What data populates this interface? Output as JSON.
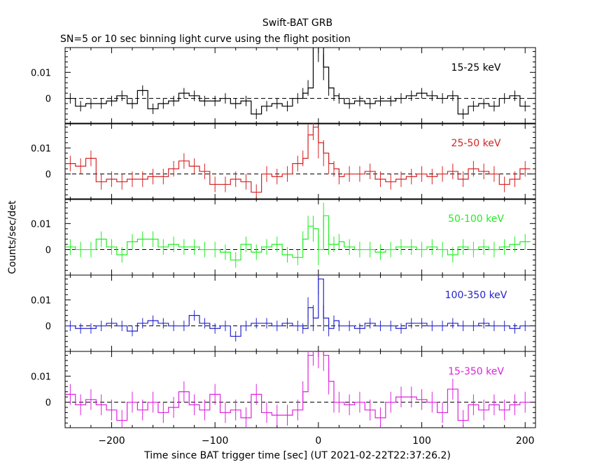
{
  "title": "Swift-BAT GRB",
  "subtitle": "SN=5 or 10 sec binning light curve using the flight position",
  "ylabel": "Counts/sec/det",
  "xlabel": "Time since BAT trigger time [sec] (UT 2021-02-22T22:37:26.2)",
  "chart_data": {
    "type": "line",
    "x_ticks": [
      -200,
      -100,
      0,
      100,
      200
    ],
    "xlim": [
      -245,
      210
    ],
    "ylim": [
      -0.0098,
      0.0195
    ],
    "y_ticks": [
      0,
      0.01
    ],
    "y_tick_labels": [
      "0",
      "0.01"
    ],
    "baseline": 0,
    "panels": [
      {
        "name": "15-25 keV",
        "color": "#000000",
        "x": [
          -240,
          -230,
          -220,
          -210,
          -200,
          -190,
          -180,
          -170,
          -160,
          -150,
          -140,
          -130,
          -120,
          -110,
          -100,
          -90,
          -80,
          -70,
          -60,
          -50,
          -40,
          -30,
          -20,
          -15,
          -10,
          -5,
          0,
          5,
          10,
          15,
          20,
          30,
          40,
          50,
          60,
          70,
          80,
          90,
          100,
          110,
          120,
          130,
          140,
          150,
          160,
          170,
          180,
          190,
          200
        ],
        "y": [
          0,
          -0.003,
          -0.002,
          -0.002,
          -0.001,
          0.001,
          -0.002,
          0.003,
          -0.004,
          -0.002,
          -0.001,
          0.002,
          0.001,
          -0.001,
          -0.001,
          0.0,
          -0.002,
          -0.001,
          -0.006,
          -0.003,
          -0.002,
          -0.003,
          0.0,
          0.002,
          0.004,
          0.02,
          0.02,
          0.012,
          0.004,
          0.001,
          0.0,
          -0.002,
          -0.001,
          -0.002,
          -0.001,
          -0.001,
          0.0,
          0.001,
          0.002,
          0.001,
          0.0,
          0.001,
          -0.006,
          -0.003,
          -0.002,
          -0.003,
          0.0,
          0.001,
          -0.003
        ],
        "err": [
          0.002,
          0.002,
          0.002,
          0.002,
          0.002,
          0.002,
          0.002,
          0.002,
          0.002,
          0.002,
          0.002,
          0.002,
          0.002,
          0.002,
          0.002,
          0.002,
          0.002,
          0.002,
          0.002,
          0.002,
          0.002,
          0.002,
          0.002,
          0.002,
          0.003,
          0.005,
          0.006,
          0.005,
          0.003,
          0.002,
          0.002,
          0.002,
          0.002,
          0.002,
          0.002,
          0.002,
          0.002,
          0.002,
          0.002,
          0.002,
          0.002,
          0.002,
          0.002,
          0.002,
          0.002,
          0.002,
          0.002,
          0.002,
          0.002
        ]
      },
      {
        "name": "25-50 keV",
        "color": "#d42222",
        "x": [
          -240,
          -230,
          -220,
          -210,
          -200,
          -190,
          -180,
          -170,
          -160,
          -150,
          -140,
          -130,
          -120,
          -110,
          -100,
          -90,
          -80,
          -70,
          -60,
          -50,
          -40,
          -30,
          -20,
          -15,
          -10,
          -5,
          0,
          5,
          10,
          15,
          20,
          30,
          40,
          50,
          60,
          70,
          80,
          90,
          100,
          110,
          120,
          130,
          140,
          150,
          160,
          170,
          180,
          190,
          200
        ],
        "y": [
          0.004,
          0.003,
          0.006,
          -0.003,
          -0.002,
          -0.003,
          -0.002,
          -0.002,
          -0.001,
          -0.001,
          0.002,
          0.005,
          0.003,
          0.001,
          -0.004,
          -0.004,
          -0.002,
          -0.003,
          -0.007,
          0.0,
          -0.001,
          0.0,
          0.004,
          0.006,
          0.015,
          0.018,
          0.012,
          0.008,
          0.004,
          0.002,
          -0.001,
          0.0,
          0.0,
          0.001,
          -0.002,
          -0.003,
          -0.002,
          -0.001,
          0.0,
          -0.001,
          0.0,
          0.001,
          -0.002,
          0.002,
          0.001,
          0.0,
          -0.004,
          -0.002,
          0.002
        ],
        "err": [
          0.003,
          0.003,
          0.003,
          0.003,
          0.003,
          0.003,
          0.003,
          0.003,
          0.003,
          0.003,
          0.003,
          0.003,
          0.003,
          0.003,
          0.003,
          0.003,
          0.003,
          0.003,
          0.003,
          0.003,
          0.003,
          0.003,
          0.003,
          0.003,
          0.004,
          0.005,
          0.006,
          0.005,
          0.004,
          0.003,
          0.003,
          0.003,
          0.003,
          0.003,
          0.003,
          0.003,
          0.003,
          0.003,
          0.003,
          0.003,
          0.003,
          0.003,
          0.003,
          0.003,
          0.003,
          0.003,
          0.003,
          0.003,
          0.003
        ]
      },
      {
        "name": "50-100 keV",
        "color": "#22ee22",
        "x": [
          -240,
          -230,
          -220,
          -210,
          -200,
          -190,
          -180,
          -170,
          -160,
          -150,
          -140,
          -130,
          -120,
          -110,
          -100,
          -90,
          -80,
          -70,
          -60,
          -50,
          -40,
          -30,
          -20,
          -15,
          -10,
          -5,
          0,
          5,
          10,
          15,
          20,
          30,
          40,
          50,
          60,
          70,
          80,
          90,
          100,
          110,
          120,
          130,
          140,
          150,
          160,
          170,
          180,
          190,
          200
        ],
        "y": [
          0.001,
          0.0,
          0.0,
          0.004,
          0.001,
          -0.002,
          0.003,
          0.004,
          0.004,
          0.001,
          0.002,
          0.001,
          0.001,
          0.0,
          0.0,
          -0.001,
          -0.004,
          0.002,
          -0.001,
          0.001,
          0.002,
          -0.002,
          -0.003,
          0.004,
          0.009,
          0.008,
          0.0,
          0.013,
          0.002,
          0.002,
          0.003,
          0.001,
          0.0,
          0.0,
          -0.001,
          0.0,
          0.001,
          0.001,
          0.0,
          0.001,
          0.0,
          -0.002,
          0.001,
          0.0,
          0.001,
          0.0,
          0.001,
          0.002,
          0.003
        ],
        "err": [
          0.003,
          0.003,
          0.003,
          0.003,
          0.003,
          0.003,
          0.003,
          0.003,
          0.003,
          0.003,
          0.003,
          0.003,
          0.003,
          0.003,
          0.003,
          0.003,
          0.003,
          0.003,
          0.003,
          0.003,
          0.003,
          0.003,
          0.003,
          0.003,
          0.004,
          0.005,
          0.006,
          0.005,
          0.004,
          0.003,
          0.003,
          0.003,
          0.003,
          0.003,
          0.003,
          0.003,
          0.003,
          0.003,
          0.003,
          0.003,
          0.003,
          0.003,
          0.003,
          0.003,
          0.003,
          0.003,
          0.003,
          0.003,
          0.003
        ]
      },
      {
        "name": "100-350 keV",
        "color": "#2222cc",
        "x": [
          -240,
          -230,
          -220,
          -210,
          -200,
          -190,
          -180,
          -170,
          -160,
          -150,
          -140,
          -130,
          -120,
          -110,
          -100,
          -90,
          -80,
          -70,
          -60,
          -50,
          -40,
          -30,
          -20,
          -15,
          -10,
          -5,
          0,
          5,
          10,
          15,
          20,
          30,
          40,
          50,
          60,
          70,
          80,
          90,
          100,
          110,
          120,
          130,
          140,
          150,
          160,
          170,
          180,
          190,
          200
        ],
        "y": [
          0.0,
          -0.001,
          -0.001,
          0.0,
          0.001,
          0.0,
          -0.002,
          0.001,
          0.002,
          0.001,
          0.0,
          0.0,
          0.004,
          0.001,
          -0.001,
          0.0,
          -0.004,
          0.0,
          0.001,
          0.001,
          0.0,
          0.001,
          0.0,
          -0.001,
          0.007,
          0.003,
          0.018,
          0.003,
          -0.001,
          0.002,
          0.0,
          0.0,
          -0.001,
          0.001,
          0.0,
          0.0,
          -0.001,
          0.001,
          0.001,
          0.0,
          0.0,
          0.001,
          0.0,
          0.0,
          0.001,
          0.0,
          0.0,
          -0.001,
          0.0
        ],
        "err": [
          0.002,
          0.002,
          0.002,
          0.002,
          0.002,
          0.002,
          0.002,
          0.002,
          0.002,
          0.002,
          0.002,
          0.002,
          0.002,
          0.002,
          0.002,
          0.002,
          0.002,
          0.002,
          0.002,
          0.002,
          0.002,
          0.002,
          0.002,
          0.002,
          0.004,
          0.005,
          0.006,
          0.005,
          0.003,
          0.002,
          0.002,
          0.002,
          0.002,
          0.002,
          0.002,
          0.002,
          0.002,
          0.002,
          0.002,
          0.002,
          0.002,
          0.002,
          0.002,
          0.002,
          0.002,
          0.002,
          0.002,
          0.002,
          0.002
        ]
      },
      {
        "name": "15-350 keV",
        "color": "#dd22dd",
        "x": [
          -240,
          -230,
          -220,
          -210,
          -200,
          -190,
          -180,
          -170,
          -160,
          -150,
          -140,
          -130,
          -120,
          -110,
          -100,
          -90,
          -80,
          -70,
          -60,
          -50,
          -40,
          -30,
          -20,
          -15,
          -10,
          -5,
          0,
          5,
          10,
          15,
          20,
          30,
          40,
          50,
          60,
          70,
          80,
          90,
          100,
          110,
          120,
          130,
          140,
          150,
          160,
          170,
          180,
          190,
          200
        ],
        "y": [
          0.003,
          -0.001,
          0.001,
          -0.001,
          -0.003,
          -0.007,
          0.0,
          -0.003,
          0.0,
          -0.004,
          -0.002,
          0.004,
          -0.001,
          -0.003,
          0.003,
          -0.004,
          -0.003,
          -0.006,
          0.003,
          -0.004,
          -0.005,
          -0.005,
          -0.003,
          0.004,
          0.018,
          0.02,
          0.02,
          0.018,
          0.008,
          0.0,
          0.0,
          -0.001,
          0.0,
          -0.003,
          -0.006,
          0.0,
          0.002,
          0.002,
          0.001,
          0.0,
          -0.004,
          0.005,
          -0.007,
          -0.001,
          -0.003,
          -0.001,
          -0.003,
          -0.001,
          0.0
        ],
        "err": [
          0.004,
          0.004,
          0.004,
          0.004,
          0.004,
          0.004,
          0.004,
          0.004,
          0.004,
          0.004,
          0.004,
          0.004,
          0.004,
          0.004,
          0.004,
          0.004,
          0.004,
          0.004,
          0.004,
          0.004,
          0.004,
          0.004,
          0.004,
          0.004,
          0.005,
          0.006,
          0.007,
          0.006,
          0.005,
          0.004,
          0.004,
          0.004,
          0.004,
          0.004,
          0.004,
          0.004,
          0.004,
          0.004,
          0.004,
          0.004,
          0.004,
          0.004,
          0.004,
          0.004,
          0.004,
          0.004,
          0.004,
          0.004,
          0.004
        ]
      }
    ]
  }
}
